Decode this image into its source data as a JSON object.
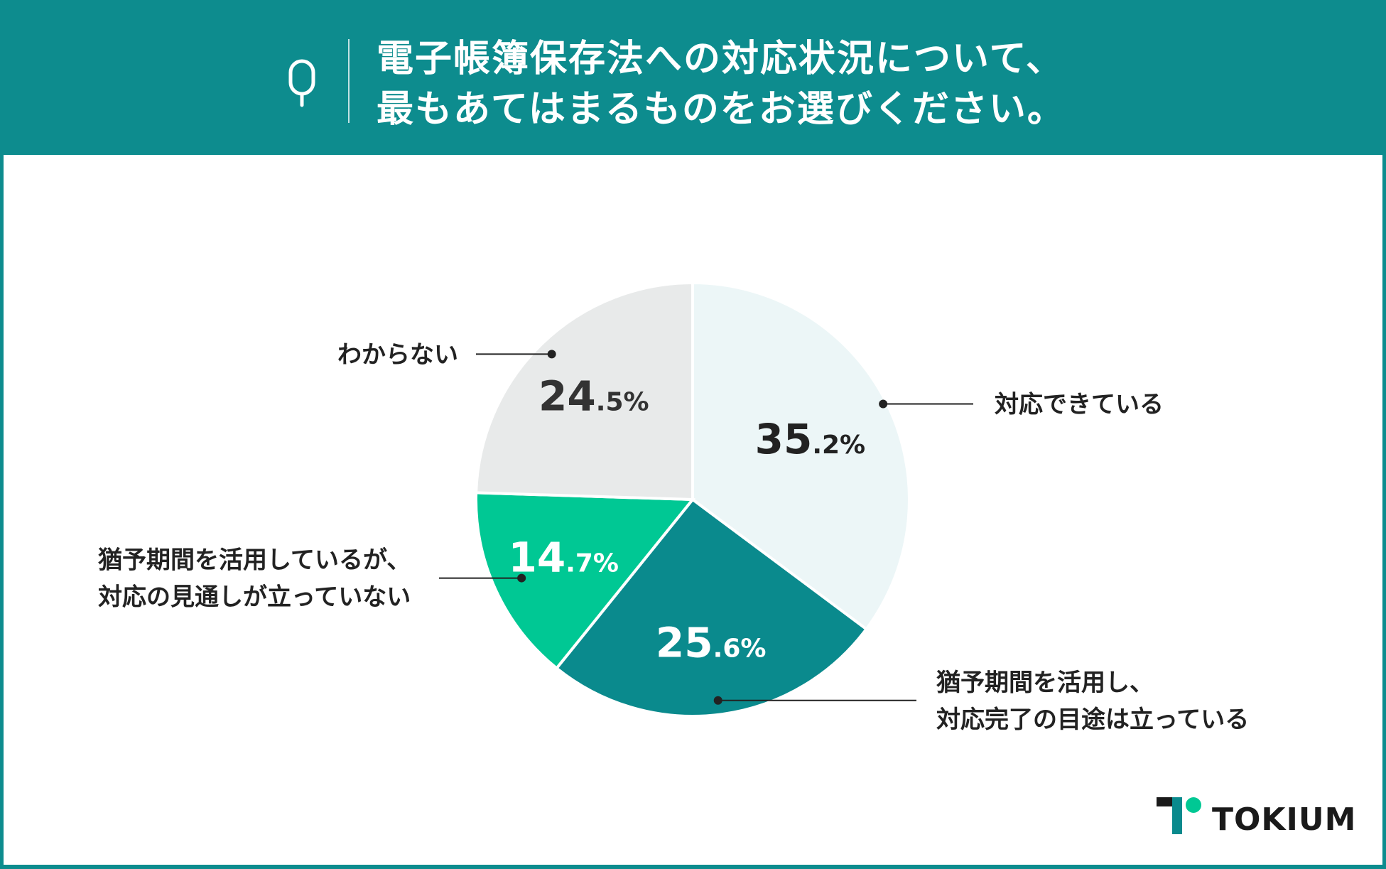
{
  "header": {
    "q_label": "Q",
    "title_line1": "電子帳簿保存法への対応状況について、",
    "title_line2": "最もあてはまるものをお選びください。"
  },
  "chart_data": {
    "type": "pie",
    "start": "12 o'clock, clockwise",
    "slices": [
      {
        "label": "対応できている",
        "value": 35.2,
        "int": "35",
        "dec": ".2%",
        "color": "#ecf6f7",
        "text_color": "#222222"
      },
      {
        "label": "猶予期間を活用し、\n対応完了の目途は立っている",
        "value": 25.6,
        "int": "25",
        "dec": ".6%",
        "color": "#0a8a8d",
        "text_color": "#ffffff"
      },
      {
        "label": "猶予期間を活用しているが、\n対応の見通しが立っていない",
        "value": 14.7,
        "int": "14",
        "dec": ".7%",
        "color": "#00c894",
        "text_color": "#ffffff"
      },
      {
        "label": "わからない",
        "value": 24.5,
        "int": "24",
        "dec": ".5%",
        "color": "#e8eaea",
        "text_color": "#333333"
      }
    ]
  },
  "footer": {
    "logo_text": "TOKIUM",
    "logo_colors": {
      "dark": "#1a1a1a",
      "teal": "#0a8a8d",
      "green": "#00c894"
    }
  }
}
